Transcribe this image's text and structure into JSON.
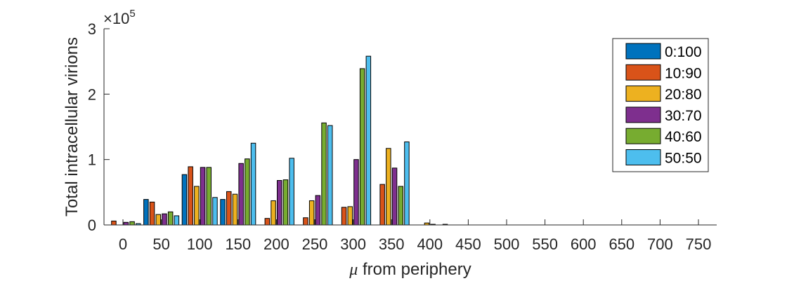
{
  "chart_data": {
    "type": "bar",
    "categories": [
      "0",
      "50",
      "100",
      "150",
      "200",
      "250",
      "300",
      "350",
      "400",
      "450",
      "500",
      "550",
      "600",
      "650",
      "700",
      "750"
    ],
    "series": [
      {
        "name": "0:100",
        "color": "#0072BD",
        "values": [
          0,
          39000,
          77000,
          39000,
          0,
          0,
          0,
          0,
          0,
          0,
          0,
          0,
          0,
          0,
          0,
          0
        ]
      },
      {
        "name": "10:90",
        "color": "#D95319",
        "values": [
          6000,
          35000,
          89000,
          51000,
          10000,
          11000,
          27000,
          62000,
          0,
          0,
          0,
          0,
          0,
          0,
          0,
          0
        ]
      },
      {
        "name": "20:80",
        "color": "#EDB120",
        "values": [
          0,
          16000,
          59000,
          47000,
          37000,
          37000,
          28000,
          117000,
          3000,
          0,
          0,
          0,
          0,
          0,
          0,
          0
        ]
      },
      {
        "name": "30:70",
        "color": "#7E2F8E",
        "values": [
          4000,
          17000,
          88000,
          94000,
          68000,
          45000,
          100000,
          87000,
          1000,
          0,
          0,
          0,
          0,
          0,
          0,
          0
        ]
      },
      {
        "name": "40:60",
        "color": "#77AC30",
        "values": [
          5000,
          20000,
          88000,
          101000,
          69000,
          156000,
          239000,
          59000,
          0,
          0,
          0,
          0,
          0,
          0,
          0,
          0
        ]
      },
      {
        "name": "50:50",
        "color": "#4DBEEE",
        "values": [
          2000,
          14000,
          42000,
          125000,
          102000,
          152000,
          258000,
          127000,
          1000,
          0,
          0,
          0,
          0,
          0,
          0,
          0
        ]
      }
    ],
    "xlabel_symbol": "μ",
    "xlabel_text": " from periphery",
    "ylabel": "Total intracellular virions",
    "ylim": [
      0,
      300000
    ],
    "yticks": [
      0,
      1,
      2,
      3
    ],
    "yexponent_base": "×10",
    "yexponent_power": "5",
    "grid": false,
    "legend_position": "top-right"
  }
}
